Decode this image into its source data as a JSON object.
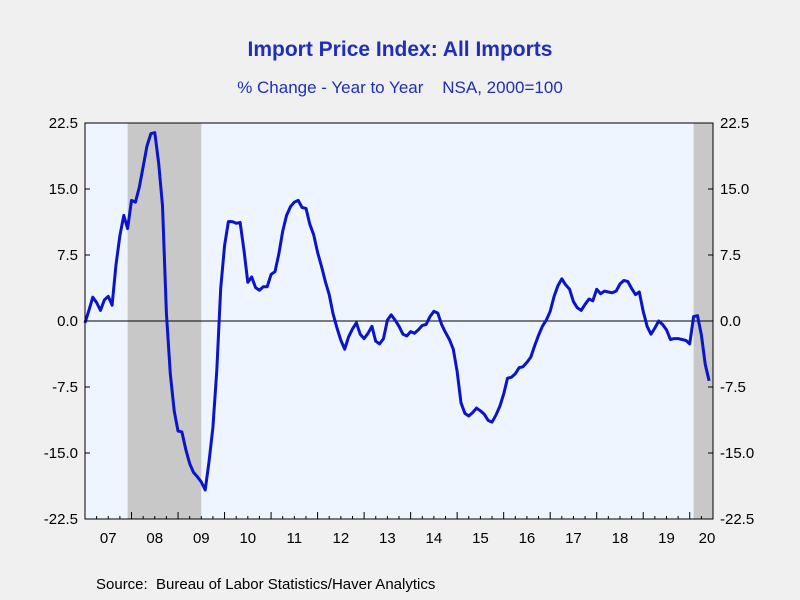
{
  "chart_data": {
    "type": "line",
    "title": "Import Price Index: All Imports",
    "subtitle": "% Change - Year to Year    NSA, 2000=100",
    "source": "Source:  Bureau of Labor Statistics/Haver Analytics",
    "xlabel": "",
    "ylabel": "",
    "x_ticks": [
      "07",
      "08",
      "09",
      "10",
      "11",
      "12",
      "13",
      "14",
      "15",
      "16",
      "17",
      "18",
      "19",
      "20"
    ],
    "y_ticks_left": [
      "22.5",
      "15.0",
      "7.5",
      "0.0",
      "-7.5",
      "-15.0",
      "-22.5"
    ],
    "y_ticks_right": [
      "22.5",
      "15.0",
      "7.5",
      "0.0",
      "-7.5",
      "-15.0",
      "-22.5"
    ],
    "ylim": [
      -22.5,
      22.5
    ],
    "xlim": [
      "2007-01",
      "2020-07"
    ],
    "recessions": [
      {
        "start": "2007-12",
        "end": "2009-06"
      },
      {
        "start": "2020-02",
        "end": "2020-06"
      }
    ],
    "colors": {
      "line": "#0a14c8",
      "recession": "#c8c8c8",
      "plot_background": "#eef5fe",
      "title": "#1f2fb8"
    },
    "legend": "none",
    "grid": false,
    "series": [
      {
        "x": [
          "2007-01",
          "2007-02",
          "2007-03",
          "2007-04",
          "2007-05",
          "2007-06",
          "2007-07",
          "2007-08",
          "2007-09",
          "2007-10",
          "2007-11",
          "2007-12",
          "2008-01",
          "2008-02",
          "2008-03",
          "2008-04",
          "2008-05",
          "2008-06",
          "2008-07",
          "2008-08",
          "2008-09",
          "2008-10",
          "2008-11",
          "2008-12",
          "2009-01",
          "2009-02",
          "2009-03",
          "2009-04",
          "2009-05",
          "2009-06",
          "2009-07",
          "2009-08",
          "2009-09",
          "2009-10",
          "2009-11",
          "2009-12",
          "2010-01",
          "2010-02",
          "2010-03",
          "2010-04",
          "2010-05",
          "2010-06",
          "2010-07",
          "2010-08",
          "2010-09",
          "2010-10",
          "2010-11",
          "2010-12",
          "2011-01",
          "2011-02",
          "2011-03",
          "2011-04",
          "2011-05",
          "2011-06",
          "2011-07",
          "2011-08",
          "2011-09",
          "2011-10",
          "2011-11",
          "2011-12",
          "2012-01",
          "2012-02",
          "2012-03",
          "2012-04",
          "2012-05",
          "2012-06",
          "2012-07",
          "2012-08",
          "2012-09",
          "2012-10",
          "2012-11",
          "2012-12",
          "2013-01",
          "2013-02",
          "2013-03",
          "2013-04",
          "2013-05",
          "2013-06",
          "2013-07",
          "2013-08",
          "2013-09",
          "2013-10",
          "2013-11",
          "2013-12",
          "2014-01",
          "2014-02",
          "2014-03",
          "2014-04",
          "2014-05",
          "2014-06",
          "2014-07",
          "2014-08",
          "2014-09",
          "2014-10",
          "2014-11",
          "2014-12",
          "2015-01",
          "2015-02",
          "2015-03",
          "2015-04",
          "2015-05",
          "2015-06",
          "2015-07",
          "2015-08",
          "2015-09",
          "2015-10",
          "2015-11",
          "2015-12",
          "2016-01",
          "2016-02",
          "2016-03",
          "2016-04",
          "2016-05",
          "2016-06",
          "2016-07",
          "2016-08",
          "2016-09",
          "2016-10",
          "2016-11",
          "2016-12",
          "2017-01",
          "2017-02",
          "2017-03",
          "2017-04",
          "2017-05",
          "2017-06",
          "2017-07",
          "2017-08",
          "2017-09",
          "2017-10",
          "2017-11",
          "2017-12",
          "2018-01",
          "2018-02",
          "2018-03",
          "2018-04",
          "2018-05",
          "2018-06",
          "2018-07",
          "2018-08",
          "2018-09",
          "2018-10",
          "2018-11",
          "2018-12",
          "2019-01",
          "2019-02",
          "2019-03",
          "2019-04",
          "2019-05",
          "2019-06",
          "2019-07",
          "2019-08",
          "2019-09",
          "2019-10",
          "2019-11",
          "2019-12",
          "2020-01",
          "2020-02",
          "2020-03",
          "2020-04",
          "2020-05",
          "2020-06"
        ],
        "values": [
          -0.2,
          1.2,
          2.7,
          2.1,
          1.2,
          2.4,
          2.8,
          1.8,
          6.4,
          9.7,
          12.0,
          10.5,
          13.7,
          13.5,
          15.2,
          17.5,
          19.9,
          21.3,
          21.4,
          17.9,
          13.1,
          0.9,
          -6.0,
          -10.2,
          -12.5,
          -12.6,
          -14.6,
          -16.2,
          -17.2,
          -17.7,
          -18.3,
          -19.2,
          -16.0,
          -12.1,
          -5.6,
          3.7,
          8.6,
          11.3,
          11.3,
          11.1,
          11.2,
          8.1,
          4.4,
          5.0,
          3.8,
          3.5,
          3.9,
          3.9,
          5.3,
          5.6,
          7.6,
          10.2,
          12.0,
          13.0,
          13.5,
          13.7,
          12.9,
          12.8,
          11.0,
          9.8,
          7.8,
          6.2,
          4.5,
          3.0,
          0.8,
          -0.8,
          -2.2,
          -3.2,
          -1.8,
          -0.9,
          -0.2,
          -1.5,
          -2.0,
          -1.4,
          -0.6,
          -2.3,
          -2.6,
          -2.0,
          0.1,
          0.7,
          0.1,
          -0.6,
          -1.5,
          -1.7,
          -1.2,
          -1.4,
          -1.0,
          -0.5,
          -0.4,
          0.5,
          1.1,
          0.9,
          -0.4,
          -1.3,
          -2.1,
          -3.2,
          -5.7,
          -9.3,
          -10.5,
          -10.8,
          -10.4,
          -9.9,
          -10.2,
          -10.6,
          -11.3,
          -11.5,
          -10.7,
          -9.7,
          -8.3,
          -6.5,
          -6.4,
          -6.0,
          -5.3,
          -5.2,
          -4.7,
          -4.1,
          -2.8,
          -1.6,
          -0.6,
          0.1,
          1.1,
          2.8,
          4.0,
          4.8,
          4.1,
          3.6,
          2.2,
          1.5,
          1.2,
          1.9,
          2.5,
          2.3,
          3.6,
          3.1,
          3.4,
          3.3,
          3.2,
          3.4,
          4.2,
          4.6,
          4.5,
          3.7,
          3.0,
          3.3,
          1.1,
          -0.6,
          -1.5,
          -0.8,
          0.0,
          -0.4,
          -1.0,
          -2.1,
          -2.0,
          -2.0,
          -2.1,
          -2.2,
          -2.6,
          0.5,
          0.6,
          -1.6,
          -4.9,
          -6.8
        ]
      }
    ]
  }
}
